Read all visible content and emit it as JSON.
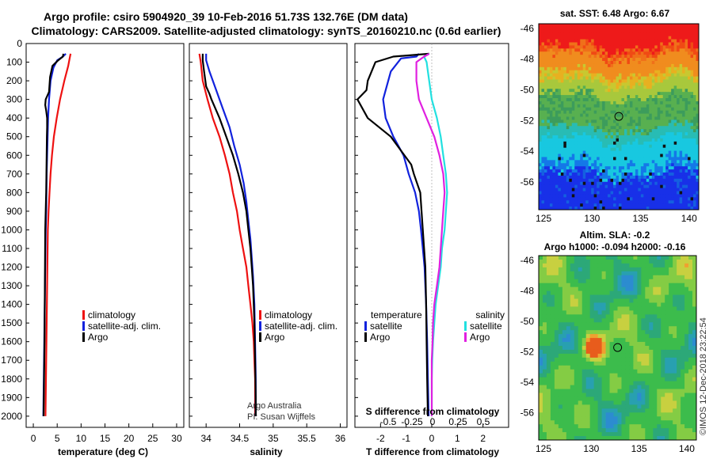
{
  "header": {
    "title_line1": "Argo profile: csiro 5904920_39 10-Feb-2016 51.73S 132.76E (DM data)",
    "title_line2": "Climatology: CARS2009. Satellite-adjusted climatology: synTS_20160210.nc (0.6d earlier)"
  },
  "colors": {
    "climatology": "#ee1111",
    "satellite": "#1122dd",
    "argo": "#000000",
    "salinity_satellite": "#22e0e0",
    "salinity_argo": "#e020e0"
  },
  "depth_axis": {
    "ticks": [
      0,
      100,
      200,
      300,
      400,
      500,
      600,
      700,
      800,
      900,
      1000,
      1100,
      1200,
      1300,
      1400,
      1500,
      1600,
      1700,
      1800,
      1900,
      2000
    ],
    "range": [
      0,
      2060
    ],
    "inverted": true
  },
  "chart_data": [
    {
      "type": "line",
      "id": "temperature",
      "xlabel": "temperature (deg C)",
      "xlim": [
        -1.5,
        31.5
      ],
      "xticks": [
        0,
        5,
        10,
        15,
        20,
        25,
        30
      ],
      "legend": {
        "placement": "lower-center",
        "entries": [
          "climatology",
          "satellite-adj. clim.",
          "Argo"
        ]
      },
      "series": [
        {
          "name": "climatology",
          "color_key": "climatology",
          "points": [
            [
              7.8,
              55
            ],
            [
              7.6,
              80
            ],
            [
              7.3,
              120
            ],
            [
              6.5,
              200
            ],
            [
              5.6,
              300
            ],
            [
              4.9,
              400
            ],
            [
              4.3,
              500
            ],
            [
              3.9,
              600
            ],
            [
              3.6,
              700
            ],
            [
              3.4,
              800
            ],
            [
              3.2,
              900
            ],
            [
              3.05,
              1000
            ],
            [
              2.95,
              1200
            ],
            [
              2.85,
              1400
            ],
            [
              2.75,
              1600
            ],
            [
              2.65,
              1800
            ],
            [
              2.55,
              2000
            ]
          ]
        },
        {
          "name": "satellite-adj. clim.",
          "color_key": "satellite",
          "points": [
            [
              6.8,
              55
            ],
            [
              6.2,
              70
            ],
            [
              5.0,
              90
            ],
            [
              4.2,
              130
            ],
            [
              3.6,
              200
            ],
            [
              3.3,
              300
            ],
            [
              3.1,
              400
            ],
            [
              3.0,
              500
            ],
            [
              2.9,
              600
            ],
            [
              2.8,
              700
            ],
            [
              2.75,
              800
            ],
            [
              2.7,
              900
            ],
            [
              2.6,
              1000
            ],
            [
              2.5,
              1200
            ],
            [
              2.4,
              1400
            ],
            [
              2.3,
              1600
            ],
            [
              2.2,
              1800
            ],
            [
              2.1,
              2000
            ]
          ]
        },
        {
          "name": "Argo",
          "color_key": "argo",
          "points": [
            [
              6.3,
              55
            ],
            [
              6.2,
              70
            ],
            [
              5.2,
              90
            ],
            [
              4.0,
              120
            ],
            [
              3.5,
              180
            ],
            [
              3.3,
              260
            ],
            [
              2.6,
              300
            ],
            [
              2.5,
              330
            ],
            [
              2.7,
              360
            ],
            [
              2.9,
              400
            ],
            [
              2.9,
              450
            ],
            [
              2.85,
              500
            ],
            [
              2.8,
              600
            ],
            [
              2.75,
              700
            ],
            [
              2.7,
              800
            ],
            [
              2.6,
              900
            ],
            [
              2.5,
              1000
            ],
            [
              2.45,
              1200
            ],
            [
              2.4,
              1400
            ],
            [
              2.35,
              1600
            ],
            [
              2.25,
              1800
            ],
            [
              2.15,
              2000
            ]
          ]
        }
      ]
    },
    {
      "type": "line",
      "id": "salinity",
      "xlabel": "salinity",
      "xlim": [
        33.75,
        36.1
      ],
      "xticks": [
        34,
        34.5,
        35,
        35.5,
        36
      ],
      "annotation": [
        "Argo Australia",
        "PI: Susan Wijffels"
      ],
      "legend": {
        "placement": "lower-center",
        "entries": [
          "climatology",
          "satellite-adj. clim.",
          "Argo"
        ]
      },
      "series": [
        {
          "name": "climatology",
          "color_key": "climatology",
          "points": [
            [
              33.9,
              55
            ],
            [
              33.92,
              100
            ],
            [
              33.95,
              200
            ],
            [
              34.02,
              300
            ],
            [
              34.1,
              400
            ],
            [
              34.2,
              500
            ],
            [
              34.28,
              600
            ],
            [
              34.35,
              700
            ],
            [
              34.4,
              800
            ],
            [
              34.46,
              900
            ],
            [
              34.5,
              1000
            ],
            [
              34.55,
              1100
            ],
            [
              34.6,
              1200
            ],
            [
              34.63,
              1300
            ],
            [
              34.66,
              1400
            ],
            [
              34.69,
              1500
            ],
            [
              34.71,
              1600
            ],
            [
              34.72,
              1700
            ],
            [
              34.73,
              1800
            ],
            [
              34.73,
              1900
            ],
            [
              34.73,
              2000
            ]
          ]
        },
        {
          "name": "satellite-adj. clim.",
          "color_key": "satellite",
          "points": [
            [
              34.0,
              55
            ],
            [
              34.0,
              90
            ],
            [
              34.05,
              150
            ],
            [
              34.15,
              250
            ],
            [
              34.25,
              350
            ],
            [
              34.35,
              450
            ],
            [
              34.42,
              550
            ],
            [
              34.5,
              650
            ],
            [
              34.56,
              750
            ],
            [
              34.6,
              850
            ],
            [
              34.63,
              950
            ],
            [
              34.66,
              1050
            ],
            [
              34.68,
              1150
            ],
            [
              34.7,
              1250
            ],
            [
              34.72,
              1400
            ],
            [
              34.73,
              1600
            ],
            [
              34.74,
              1800
            ],
            [
              34.74,
              2000
            ]
          ]
        },
        {
          "name": "Argo",
          "color_key": "argo",
          "points": [
            [
              33.95,
              55
            ],
            [
              33.95,
              90
            ],
            [
              33.97,
              150
            ],
            [
              34.0,
              230
            ],
            [
              34.05,
              270
            ],
            [
              34.08,
              300
            ],
            [
              34.2,
              400
            ],
            [
              34.3,
              500
            ],
            [
              34.4,
              600
            ],
            [
              34.48,
              700
            ],
            [
              34.55,
              800
            ],
            [
              34.6,
              900
            ],
            [
              34.63,
              1000
            ],
            [
              34.66,
              1100
            ],
            [
              34.68,
              1200
            ],
            [
              34.7,
              1300
            ],
            [
              34.71,
              1400
            ],
            [
              34.72,
              1500
            ],
            [
              34.73,
              1700
            ],
            [
              34.74,
              1900
            ],
            [
              34.74,
              2000
            ]
          ]
        }
      ]
    },
    {
      "type": "line",
      "id": "difference",
      "xlabel": "T difference from climatology",
      "top_xlabel": "S difference from climatology",
      "xlim": [
        -3,
        3
      ],
      "xticks": [
        -2,
        -1,
        0,
        1,
        2
      ],
      "s_xticks": [
        "-0.5",
        "-0.25",
        "0",
        "0.25",
        "0.5"
      ],
      "legend": {
        "placement": "lower-center",
        "temperature_heading": "temperature",
        "salinity_heading": "salinity",
        "temperature_entries": [
          "satellite",
          "Argo"
        ],
        "salinity_entries": [
          "satellite",
          "Argo"
        ]
      },
      "series": [
        {
          "name": "temperature satellite",
          "color_key": "satellite",
          "points": [
            [
              -0.5,
              55
            ],
            [
              -0.6,
              70
            ],
            [
              -1.2,
              80
            ],
            [
              -1.6,
              150
            ],
            [
              -1.9,
              300
            ],
            [
              -1.8,
              400
            ],
            [
              -1.5,
              500
            ],
            [
              -1.1,
              600
            ],
            [
              -0.9,
              700
            ],
            [
              -0.65,
              800
            ],
            [
              -0.5,
              900
            ],
            [
              -0.42,
              1000
            ],
            [
              -0.35,
              1100
            ],
            [
              -0.28,
              1200
            ],
            [
              -0.22,
              1400
            ],
            [
              -0.18,
              1600
            ],
            [
              -0.15,
              1800
            ],
            [
              -0.12,
              2000
            ]
          ]
        },
        {
          "name": "temperature Argo",
          "color_key": "argo",
          "points": [
            [
              -0.1,
              55
            ],
            [
              -1.5,
              70
            ],
            [
              -2.2,
              100
            ],
            [
              -2.5,
              200
            ],
            [
              -2.55,
              250
            ],
            [
              -2.9,
              300
            ],
            [
              -2.5,
              400
            ],
            [
              -1.6,
              500
            ],
            [
              -0.8,
              650
            ],
            [
              -0.7,
              700
            ],
            [
              -0.45,
              800
            ],
            [
              -0.4,
              900
            ],
            [
              -0.35,
              1000
            ],
            [
              -0.3,
              1100
            ],
            [
              -0.25,
              1200
            ],
            [
              -0.22,
              1400
            ],
            [
              -0.2,
              1600
            ],
            [
              -0.18,
              1800
            ],
            [
              -0.15,
              2000
            ]
          ]
        },
        {
          "name": "salinity satellite",
          "color_key": "salinity_satellite",
          "points": [
            [
              -0.1,
              55
            ],
            [
              -0.3,
              70
            ],
            [
              -0.2,
              100
            ],
            [
              -0.15,
              150
            ],
            [
              0.0,
              300
            ],
            [
              0.2,
              400
            ],
            [
              0.35,
              500
            ],
            [
              0.45,
              600
            ],
            [
              0.55,
              700
            ],
            [
              0.6,
              800
            ],
            [
              0.55,
              900
            ],
            [
              0.5,
              1000
            ],
            [
              0.4,
              1100
            ],
            [
              0.35,
              1200
            ],
            [
              0.25,
              1300
            ],
            [
              0.15,
              1400
            ],
            [
              0.1,
              1500
            ],
            [
              0.05,
              1600
            ],
            [
              0.02,
              1700
            ],
            [
              0.0,
              1800
            ],
            [
              0.0,
              1900
            ],
            [
              0.0,
              2000
            ]
          ]
        },
        {
          "name": "salinity Argo",
          "color_key": "salinity_argo",
          "points": [
            [
              -0.1,
              55
            ],
            [
              -0.3,
              70
            ],
            [
              -0.6,
              100
            ],
            [
              -0.6,
              200
            ],
            [
              -0.5,
              300
            ],
            [
              -0.2,
              400
            ],
            [
              0.1,
              500
            ],
            [
              0.3,
              600
            ],
            [
              0.45,
              700
            ],
            [
              0.5,
              800
            ],
            [
              0.45,
              900
            ],
            [
              0.4,
              1000
            ],
            [
              0.35,
              1100
            ],
            [
              0.3,
              1200
            ],
            [
              0.2,
              1300
            ],
            [
              0.1,
              1400
            ],
            [
              0.05,
              1500
            ],
            [
              0.03,
              1600
            ],
            [
              0.0,
              1700
            ],
            [
              0.0,
              1800
            ],
            [
              0.0,
              1900
            ],
            [
              0.0,
              2000
            ]
          ]
        }
      ]
    },
    {
      "type": "heatmap",
      "id": "sst_map",
      "title": "sat. SST: 6.48 Argo: 6.67",
      "xticks": [
        125,
        130,
        135,
        140
      ],
      "yticks": [
        -46,
        -48,
        -50,
        -52,
        -54,
        -56
      ],
      "xlim": [
        124.5,
        141
      ],
      "ylim": [
        -57.8,
        -45.7
      ],
      "profile_marker": {
        "lon": 132.76,
        "lat": -51.73
      }
    },
    {
      "type": "heatmap",
      "id": "sla_map",
      "title": "Altim. SLA: -0.2",
      "subtitle": "Argo h1000: -0.094 h2000: -0.16",
      "xticks": [
        125,
        130,
        135,
        140
      ],
      "yticks": [
        -46,
        -48,
        -50,
        -52,
        -54,
        -56
      ],
      "xlim": [
        124.5,
        141
      ],
      "ylim": [
        -57.8,
        -45.7
      ],
      "profile_marker": {
        "lon": 132.76,
        "lat": -51.73
      },
      "side_note": "©IMOS 12-Dec-2018 23:22:54"
    }
  ]
}
